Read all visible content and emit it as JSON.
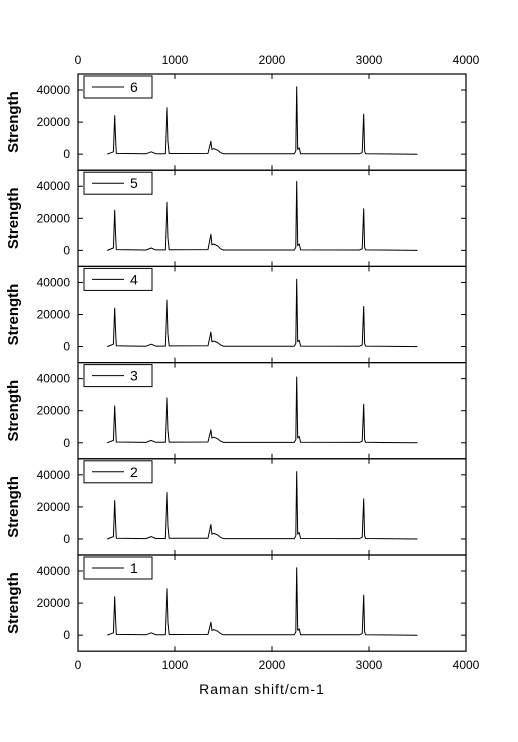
{
  "chart_data": {
    "type": "line",
    "title": "",
    "xlabel": "Raman shift/cm-1",
    "ylabel": "Strength",
    "xlim": [
      0,
      4000
    ],
    "ylim": [
      -10000,
      50000
    ],
    "x_ticks": [
      0,
      1000,
      2000,
      3000,
      4000
    ],
    "y_ticks": [
      0,
      20000,
      40000
    ],
    "grid": false,
    "legend_position": "top-left",
    "stacked_panels_top_to_bottom": [
      "6",
      "5",
      "4",
      "3",
      "2",
      "1"
    ],
    "series": [
      {
        "name": "6",
        "x": [
          300,
          365,
          378,
          386,
          395,
          700,
          755,
          800,
          900,
          918,
          928,
          940,
          1340,
          1370,
          1380,
          1400,
          1440,
          1470,
          1500,
          2230,
          2245,
          2255,
          2265,
          2280,
          2295,
          2900,
          2930,
          2945,
          2955,
          2965,
          3500
        ],
        "y": [
          0,
          1500,
          24000,
          12000,
          500,
          200,
          1500,
          300,
          300,
          29000,
          8000,
          400,
          500,
          8000,
          3000,
          3500,
          2500,
          1000,
          200,
          200,
          2000,
          42000,
          3000,
          4000,
          300,
          200,
          1000,
          25000,
          2000,
          300,
          0
        ]
      },
      {
        "name": "5",
        "x": [
          300,
          365,
          378,
          386,
          395,
          700,
          755,
          800,
          900,
          918,
          928,
          940,
          1340,
          1370,
          1380,
          1400,
          1440,
          1470,
          1500,
          2230,
          2245,
          2255,
          2265,
          2280,
          2295,
          2900,
          2930,
          2945,
          2955,
          2965,
          3500
        ],
        "y": [
          0,
          1500,
          25000,
          12000,
          500,
          200,
          1500,
          300,
          300,
          30000,
          8000,
          400,
          500,
          10000,
          3500,
          4000,
          2800,
          1000,
          200,
          200,
          2000,
          43000,
          3000,
          4000,
          300,
          200,
          1000,
          26000,
          2000,
          300,
          0
        ]
      },
      {
        "name": "4",
        "x": [
          300,
          365,
          378,
          386,
          395,
          700,
          755,
          800,
          900,
          918,
          928,
          940,
          1340,
          1370,
          1380,
          1400,
          1440,
          1470,
          1500,
          2230,
          2245,
          2255,
          2265,
          2280,
          2295,
          2900,
          2930,
          2945,
          2955,
          2965,
          3500
        ],
        "y": [
          0,
          1500,
          24000,
          12000,
          500,
          200,
          1500,
          300,
          300,
          29000,
          8000,
          400,
          500,
          9000,
          3000,
          3500,
          2500,
          1000,
          200,
          200,
          2000,
          42000,
          3000,
          4000,
          300,
          200,
          1000,
          25000,
          2000,
          300,
          0
        ]
      },
      {
        "name": "3",
        "x": [
          300,
          365,
          378,
          386,
          395,
          700,
          755,
          800,
          900,
          918,
          928,
          940,
          1340,
          1370,
          1380,
          1400,
          1440,
          1470,
          1500,
          2230,
          2245,
          2255,
          2265,
          2280,
          2295,
          2900,
          2930,
          2945,
          2955,
          2965,
          3500
        ],
        "y": [
          0,
          1500,
          23000,
          12000,
          500,
          200,
          1500,
          300,
          300,
          28000,
          8000,
          400,
          500,
          8000,
          3000,
          3500,
          2500,
          1000,
          200,
          200,
          2000,
          41000,
          3000,
          4000,
          300,
          200,
          1000,
          24000,
          2000,
          300,
          0
        ]
      },
      {
        "name": "2",
        "x": [
          300,
          365,
          378,
          386,
          395,
          700,
          755,
          800,
          900,
          918,
          928,
          940,
          1340,
          1370,
          1380,
          1400,
          1440,
          1470,
          1500,
          2230,
          2245,
          2255,
          2265,
          2280,
          2295,
          2900,
          2930,
          2945,
          2955,
          2965,
          3500
        ],
        "y": [
          0,
          1500,
          24000,
          12000,
          500,
          200,
          1500,
          300,
          300,
          29000,
          8000,
          400,
          500,
          9000,
          3000,
          3500,
          2500,
          1000,
          200,
          200,
          2000,
          42000,
          3000,
          4000,
          300,
          200,
          1000,
          25000,
          2000,
          300,
          0
        ]
      },
      {
        "name": "1",
        "x": [
          300,
          365,
          378,
          386,
          395,
          700,
          755,
          800,
          900,
          918,
          928,
          940,
          1340,
          1370,
          1380,
          1400,
          1440,
          1470,
          1500,
          2230,
          2245,
          2255,
          2265,
          2280,
          2295,
          2900,
          2930,
          2945,
          2955,
          2965,
          3500
        ],
        "y": [
          0,
          1500,
          24000,
          12000,
          500,
          200,
          1500,
          300,
          300,
          29000,
          8000,
          400,
          500,
          8000,
          3000,
          3500,
          2500,
          1000,
          200,
          200,
          2000,
          42000,
          3000,
          4000,
          300,
          200,
          1000,
          25000,
          2000,
          300,
          0
        ]
      }
    ]
  }
}
